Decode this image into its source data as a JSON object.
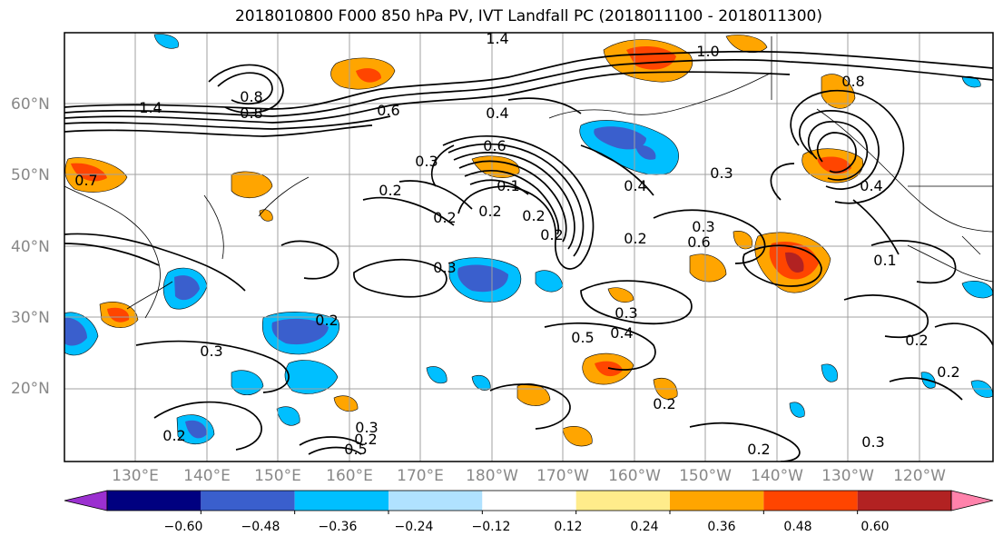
{
  "title": "2018010800 F000 850 hPa PV, IVT Landfall PC (2018011100 - 2018011300)",
  "lat_labels": [
    "60°N",
    "50°N",
    "40°N",
    "30°N",
    "20°N"
  ],
  "lon_labels": [
    "130°E",
    "140°E",
    "150°E",
    "160°E",
    "170°E",
    "180°W",
    "170°W",
    "160°W",
    "150°W",
    "140°W",
    "130°W",
    "120°W"
  ],
  "colorbar": {
    "ticks": [
      "−0.60",
      "−0.48",
      "−0.36",
      "−0.24",
      "−0.12",
      "0.12",
      "0.24",
      "0.36",
      "0.48",
      "0.60"
    ],
    "colors": [
      "#9b30d0",
      "#000080",
      "#3a5fcd",
      "#00bfff",
      "#b0e2ff",
      "#ffffff",
      "#ffec8b",
      "#ffa500",
      "#ff4500",
      "#b22222",
      "#ff82ab"
    ]
  },
  "contour_labels": [
    "1.4",
    "1.0",
    "1.4",
    "0.8",
    "0.8",
    "0.6",
    "0.4",
    "0.7",
    "0.8",
    "0.6",
    "0.2",
    "0.2",
    "0.3",
    "0.3",
    "0.4",
    "0.2",
    "0.3",
    "0.6",
    "0.1",
    "0.3",
    "0.3",
    "0.5",
    "0.4",
    "0.2",
    "0.2",
    "0.2",
    "0.3",
    "0.2",
    "0.2",
    "0.3",
    "0.2",
    "0.5",
    "0.2",
    "0.2",
    "0.3",
    "0.4",
    "0.1",
    "0.2",
    "0.2"
  ]
}
